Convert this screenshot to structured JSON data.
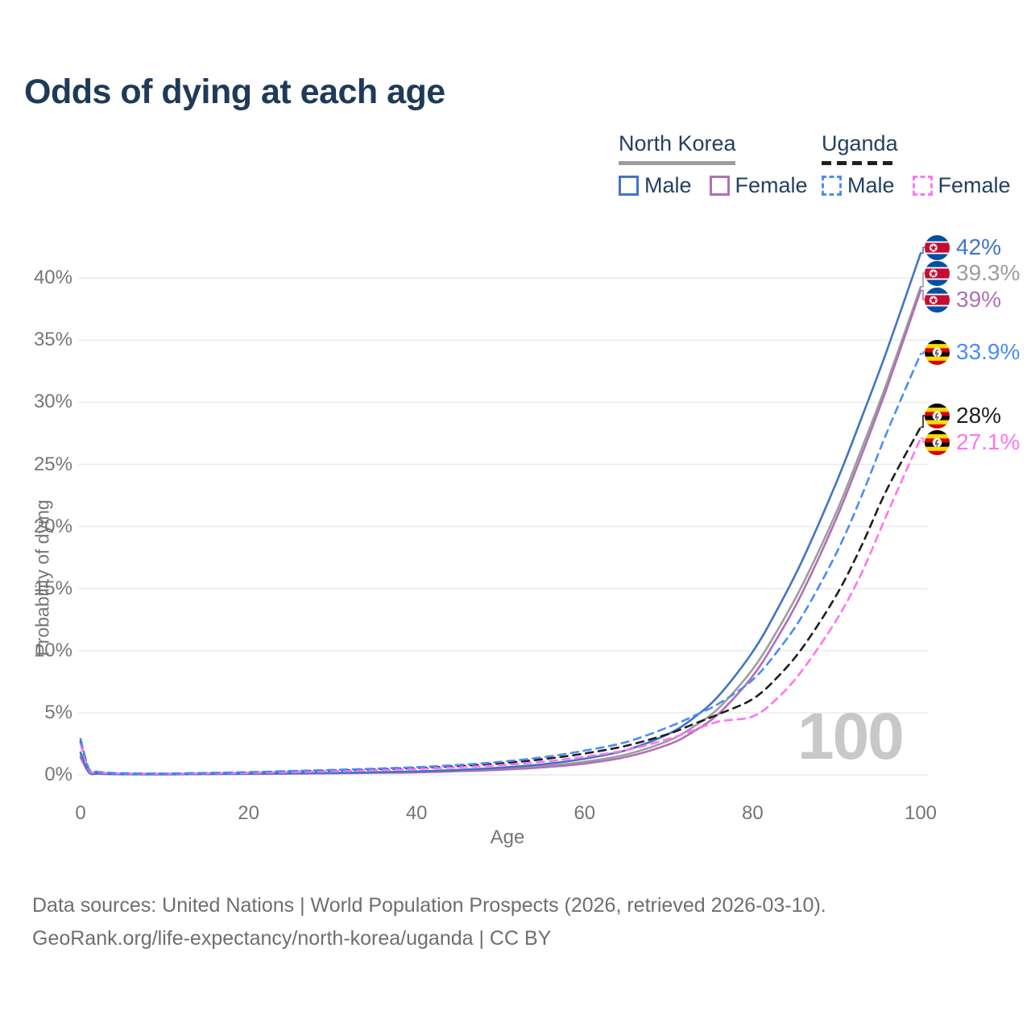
{
  "title": "Odds of dying at each age",
  "watermark": "100",
  "footer": {
    "line1": "Data sources: United Nations | World Population Prospects (2026, retrieved 2026-03-10).",
    "line2": "GeoRank.org/life-expectancy/north-korea/uganda | CC BY"
  },
  "colors": {
    "title_text": "#1f3a59",
    "legend_text": "#24405f",
    "axis_text": "#767676",
    "grid": "#eaeaea",
    "watermark": "#c8c8c8",
    "footer_text": "#6e6e6e",
    "north_korea_male": "#4274c4",
    "north_korea_all": "#9d9d9d",
    "north_korea_female": "#b06fb8",
    "uganda_male": "#4b8cf8",
    "uganda_all": "#1f1f1f",
    "uganda_female": "#ff75f0"
  },
  "legend": {
    "groups": [
      {
        "label": "North Korea",
        "slug": "north-korea",
        "underline_style": "solid",
        "underline_color": "#9d9d9d",
        "items": [
          {
            "label": "Male",
            "color": "#4274c4",
            "dash": false
          },
          {
            "label": "Female",
            "color": "#b06fb8",
            "dash": false
          }
        ]
      },
      {
        "label": "Uganda",
        "slug": "uganda",
        "underline_style": "dashed",
        "underline_color": "#1f1f1f",
        "items": [
          {
            "label": "Male",
            "color": "#4b8cf8",
            "dash": true
          },
          {
            "label": "Female",
            "color": "#ff75f0",
            "dash": true
          }
        ]
      }
    ]
  },
  "chart_data": {
    "type": "line",
    "title": "Odds of dying at each age",
    "xlabel": "Age",
    "ylabel": "Probability of dying",
    "x_ticks": [
      0,
      20,
      40,
      60,
      80,
      100
    ],
    "y_ticks_percent": [
      0,
      5,
      10,
      15,
      20,
      25,
      30,
      35,
      40
    ],
    "xlim": [
      0,
      100
    ],
    "ylim": [
      0,
      43.5
    ],
    "grid": "horizontal",
    "legend_position": "top-right",
    "series": [
      {
        "name": "North Korea Male",
        "slug": "north-korea-male",
        "flag": "north-korea",
        "color": "#4274c4",
        "dash": "solid",
        "end_label": "42%",
        "x": [
          0,
          1,
          2,
          4,
          6,
          10,
          15,
          20,
          25,
          30,
          35,
          40,
          45,
          50,
          55,
          60,
          65,
          70,
          73,
          76,
          80,
          83,
          86,
          90,
          93,
          96,
          100
        ],
        "y": [
          1.8,
          0.25,
          0.12,
          0.07,
          0.06,
          0.05,
          0.08,
          0.1,
          0.13,
          0.16,
          0.21,
          0.28,
          0.4,
          0.58,
          0.85,
          1.3,
          2.0,
          3.3,
          4.6,
          6.4,
          9.9,
          13.4,
          17.4,
          23.6,
          28.8,
          34.2,
          42.0
        ]
      },
      {
        "name": "North Korea",
        "slug": "north-korea-all",
        "flag": "north-korea",
        "color": "#9d9d9d",
        "dash": "solid",
        "end_label": "39.3%",
        "x": [
          0,
          1,
          2,
          4,
          6,
          10,
          15,
          20,
          25,
          30,
          35,
          40,
          45,
          50,
          55,
          60,
          65,
          70,
          73,
          76,
          80,
          83,
          86,
          90,
          93,
          96,
          100
        ],
        "y": [
          1.6,
          0.21,
          0.1,
          0.06,
          0.05,
          0.045,
          0.07,
          0.09,
          0.11,
          0.14,
          0.18,
          0.24,
          0.34,
          0.48,
          0.7,
          1.05,
          1.65,
          2.75,
          3.9,
          5.4,
          8.5,
          11.7,
          15.4,
          21.2,
          26.3,
          31.6,
          39.3
        ]
      },
      {
        "name": "North Korea Female",
        "slug": "north-korea-female",
        "flag": "north-korea",
        "color": "#b06fb8",
        "dash": "solid",
        "end_label": "39%",
        "x": [
          0,
          1,
          2,
          4,
          6,
          10,
          15,
          20,
          25,
          30,
          35,
          40,
          45,
          50,
          55,
          60,
          65,
          70,
          73,
          76,
          80,
          83,
          86,
          90,
          93,
          96,
          100
        ],
        "y": [
          1.4,
          0.18,
          0.09,
          0.055,
          0.045,
          0.04,
          0.06,
          0.08,
          0.1,
          0.12,
          0.16,
          0.2,
          0.29,
          0.41,
          0.6,
          0.9,
          1.45,
          2.45,
          3.5,
          4.95,
          7.95,
          11.1,
          14.8,
          20.7,
          25.8,
          31.2,
          39.0
        ]
      },
      {
        "name": "Uganda Male",
        "slug": "uganda-male",
        "flag": "uganda",
        "color": "#4b8cf8",
        "dash": "dashed",
        "end_label": "33.9%",
        "x": [
          0,
          1,
          2,
          4,
          6,
          10,
          15,
          20,
          25,
          30,
          35,
          40,
          45,
          50,
          55,
          60,
          65,
          70,
          73,
          76,
          80,
          83,
          86,
          90,
          93,
          96,
          100
        ],
        "y": [
          2.9,
          0.5,
          0.25,
          0.15,
          0.12,
          0.11,
          0.16,
          0.22,
          0.31,
          0.4,
          0.5,
          0.62,
          0.8,
          1.05,
          1.42,
          1.95,
          2.65,
          3.85,
          4.75,
          5.75,
          7.65,
          10.0,
          12.9,
          17.9,
          22.5,
          27.6,
          33.9
        ]
      },
      {
        "name": "Uganda",
        "slug": "uganda-all",
        "flag": "uganda",
        "color": "#1f1f1f",
        "dash": "dashed",
        "end_label": "28%",
        "x": [
          0,
          1,
          2,
          4,
          6,
          10,
          15,
          20,
          25,
          30,
          35,
          40,
          45,
          50,
          55,
          60,
          65,
          70,
          73,
          76,
          80,
          83,
          86,
          90,
          93,
          96,
          100
        ],
        "y": [
          2.7,
          0.45,
          0.22,
          0.13,
          0.11,
          0.1,
          0.14,
          0.19,
          0.27,
          0.35,
          0.44,
          0.55,
          0.71,
          0.93,
          1.26,
          1.72,
          2.35,
          3.3,
          4.1,
          4.9,
          6.1,
          7.9,
          10.3,
          14.5,
          18.5,
          23.0,
          28.0
        ]
      },
      {
        "name": "Uganda Female",
        "slug": "uganda-female",
        "flag": "uganda",
        "color": "#ff75f0",
        "dash": "dashed",
        "end_label": "27.1%",
        "x": [
          0,
          1,
          2,
          4,
          6,
          10,
          15,
          20,
          25,
          30,
          35,
          40,
          45,
          50,
          55,
          60,
          65,
          70,
          73,
          76,
          80,
          83,
          86,
          90,
          93,
          96,
          100
        ],
        "y": [
          2.5,
          0.4,
          0.2,
          0.12,
          0.1,
          0.09,
          0.12,
          0.16,
          0.22,
          0.29,
          0.37,
          0.47,
          0.61,
          0.79,
          1.06,
          1.46,
          2.0,
          2.9,
          3.6,
          4.3,
          4.7,
          6.2,
          8.5,
          12.5,
          16.3,
          21.0,
          27.1
        ]
      }
    ]
  }
}
